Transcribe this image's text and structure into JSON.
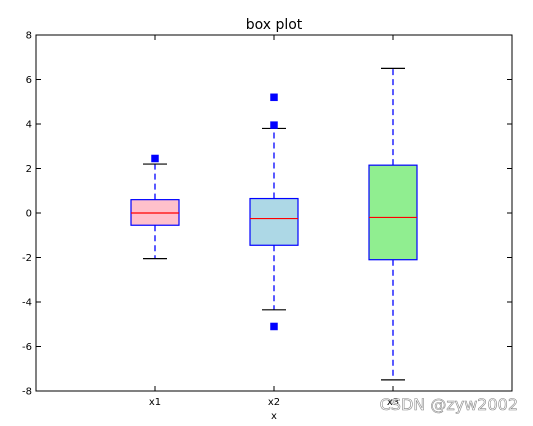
{
  "chart_data": {
    "type": "box",
    "title": "box plot",
    "xlabel": "x",
    "ylabel": "",
    "ylim": [
      -8,
      8
    ],
    "yticks": [
      -8,
      -6,
      -4,
      -2,
      0,
      2,
      4,
      6,
      8
    ],
    "categories": [
      "x1",
      "x2",
      "x3"
    ],
    "grid": false,
    "boxes": [
      {
        "label": "x1",
        "whisker_low": -2.05,
        "q1": -0.55,
        "median": 0.0,
        "q3": 0.6,
        "whisker_high": 2.2,
        "outliers": [
          2.45
        ],
        "fill": "#ffc0cb"
      },
      {
        "label": "x2",
        "whisker_low": -4.35,
        "q1": -1.45,
        "median": -0.25,
        "q3": 0.65,
        "whisker_high": 3.8,
        "outliers": [
          5.2,
          3.95,
          -5.1
        ],
        "fill": "#add8e6"
      },
      {
        "label": "x3",
        "whisker_low": -7.5,
        "q1": -2.1,
        "median": -0.2,
        "q3": 2.15,
        "whisker_high": 6.5,
        "outliers": [],
        "fill": "#90ee90"
      }
    ],
    "colors": {
      "box_edge": "#0000ff",
      "whisker": "#0000ff",
      "median": "#ff0000",
      "flier": "#0000ff",
      "cap": "#000000"
    }
  },
  "watermark": "CSDN @zyw2002"
}
